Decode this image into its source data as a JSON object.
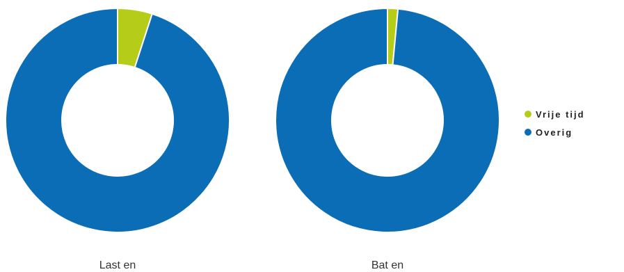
{
  "chart_data": [
    {
      "type": "pie",
      "title": "Last en",
      "categories": [
        "Vrije tijd",
        "Overig"
      ],
      "values": [
        5.0,
        95.0
      ]
    },
    {
      "type": "pie",
      "title": "Bat en",
      "categories": [
        "Vrije tijd",
        "Overig"
      ],
      "values": [
        1.5,
        98.5
      ]
    }
  ],
  "legend": {
    "items": [
      {
        "label": "Vrije tijd",
        "color": "#b5cc18"
      },
      {
        "label": "Overig",
        "color": "#0a6db5"
      }
    ],
    "position": "right"
  }
}
